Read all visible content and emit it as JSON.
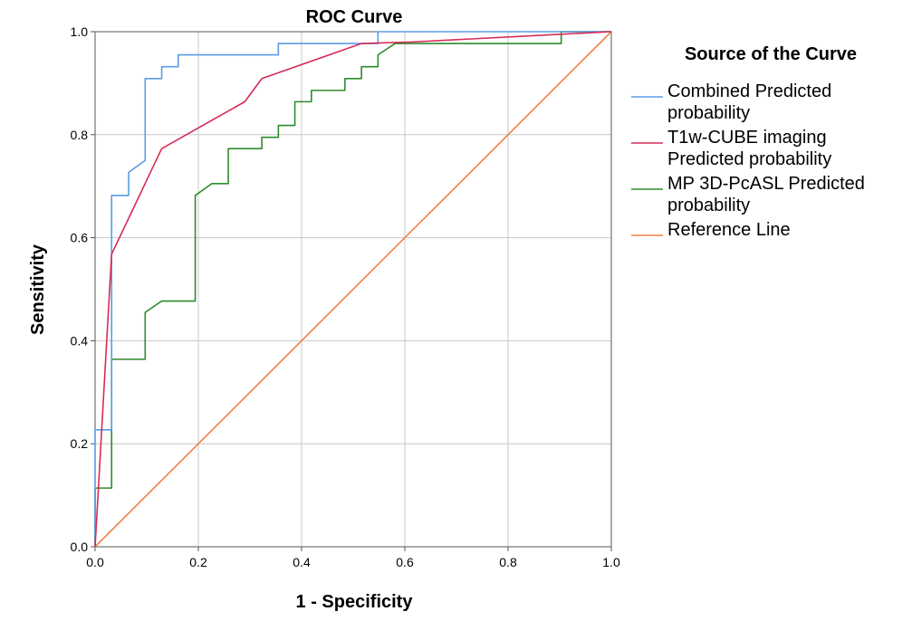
{
  "chart_data": {
    "type": "line",
    "title": "ROC Curve",
    "xlabel": "1 - Specificity",
    "ylabel": "Sensitivity",
    "xlim": [
      0.0,
      1.0
    ],
    "ylim": [
      0.0,
      1.0
    ],
    "xticks": [
      "0.0",
      "0.2",
      "0.4",
      "0.6",
      "0.8",
      "1.0"
    ],
    "yticks": [
      "0.0",
      "0.2",
      "0.4",
      "0.6",
      "0.8",
      "1.0"
    ],
    "grid": true,
    "legend": {
      "title": "Source of the Curve",
      "position": "right"
    },
    "series": [
      {
        "name": "Combined Predicted probability",
        "legend_lines": [
          "Combined Predicted",
          "probability"
        ],
        "color": "#5B9BE6",
        "points": [
          [
            0,
            0
          ],
          [
            0,
            0.227
          ],
          [
            0.032,
            0.227
          ],
          [
            0.032,
            0.682
          ],
          [
            0.065,
            0.682
          ],
          [
            0.065,
            0.727
          ],
          [
            0.097,
            0.75
          ],
          [
            0.097,
            0.909
          ],
          [
            0.129,
            0.909
          ],
          [
            0.129,
            0.932
          ],
          [
            0.161,
            0.932
          ],
          [
            0.161,
            0.955
          ],
          [
            0.355,
            0.955
          ],
          [
            0.355,
            0.977
          ],
          [
            0.548,
            0.977
          ],
          [
            0.548,
            1.0
          ],
          [
            1.0,
            1.0
          ]
        ]
      },
      {
        "name": "T1w-CUBE imaging Predicted probability",
        "legend_lines": [
          "T1w-CUBE imaging",
          "Predicted probability"
        ],
        "color": "#D62B55",
        "points": [
          [
            0,
            0
          ],
          [
            0.032,
            0.568
          ],
          [
            0.129,
            0.773
          ],
          [
            0.29,
            0.864
          ],
          [
            0.323,
            0.909
          ],
          [
            0.516,
            0.977
          ],
          [
            0.613,
            0.98
          ],
          [
            0.903,
            0.995
          ],
          [
            1.0,
            1.0
          ]
        ]
      },
      {
        "name": "MP 3D-PcASL Predicted probability",
        "legend_lines": [
          "MP 3D-PcASL Predicted",
          "probability"
        ],
        "color": "#2E8B2E",
        "points": [
          [
            0,
            0
          ],
          [
            0,
            0.114
          ],
          [
            0.032,
            0.114
          ],
          [
            0.032,
            0.364
          ],
          [
            0.097,
            0.364
          ],
          [
            0.097,
            0.455
          ],
          [
            0.129,
            0.477
          ],
          [
            0.194,
            0.477
          ],
          [
            0.194,
            0.682
          ],
          [
            0.226,
            0.705
          ],
          [
            0.258,
            0.705
          ],
          [
            0.258,
            0.773
          ],
          [
            0.323,
            0.773
          ],
          [
            0.323,
            0.795
          ],
          [
            0.355,
            0.795
          ],
          [
            0.355,
            0.818
          ],
          [
            0.387,
            0.818
          ],
          [
            0.387,
            0.864
          ],
          [
            0.419,
            0.864
          ],
          [
            0.419,
            0.886
          ],
          [
            0.484,
            0.886
          ],
          [
            0.484,
            0.909
          ],
          [
            0.516,
            0.909
          ],
          [
            0.516,
            0.932
          ],
          [
            0.548,
            0.932
          ],
          [
            0.548,
            0.955
          ],
          [
            0.581,
            0.977
          ],
          [
            0.903,
            0.977
          ],
          [
            0.903,
            1.0
          ],
          [
            1.0,
            1.0
          ]
        ]
      },
      {
        "name": "Reference Line",
        "legend_lines": [
          "Reference Line"
        ],
        "color": "#F08040",
        "points": [
          [
            0,
            0
          ],
          [
            1.0,
            1.0
          ]
        ]
      }
    ]
  }
}
